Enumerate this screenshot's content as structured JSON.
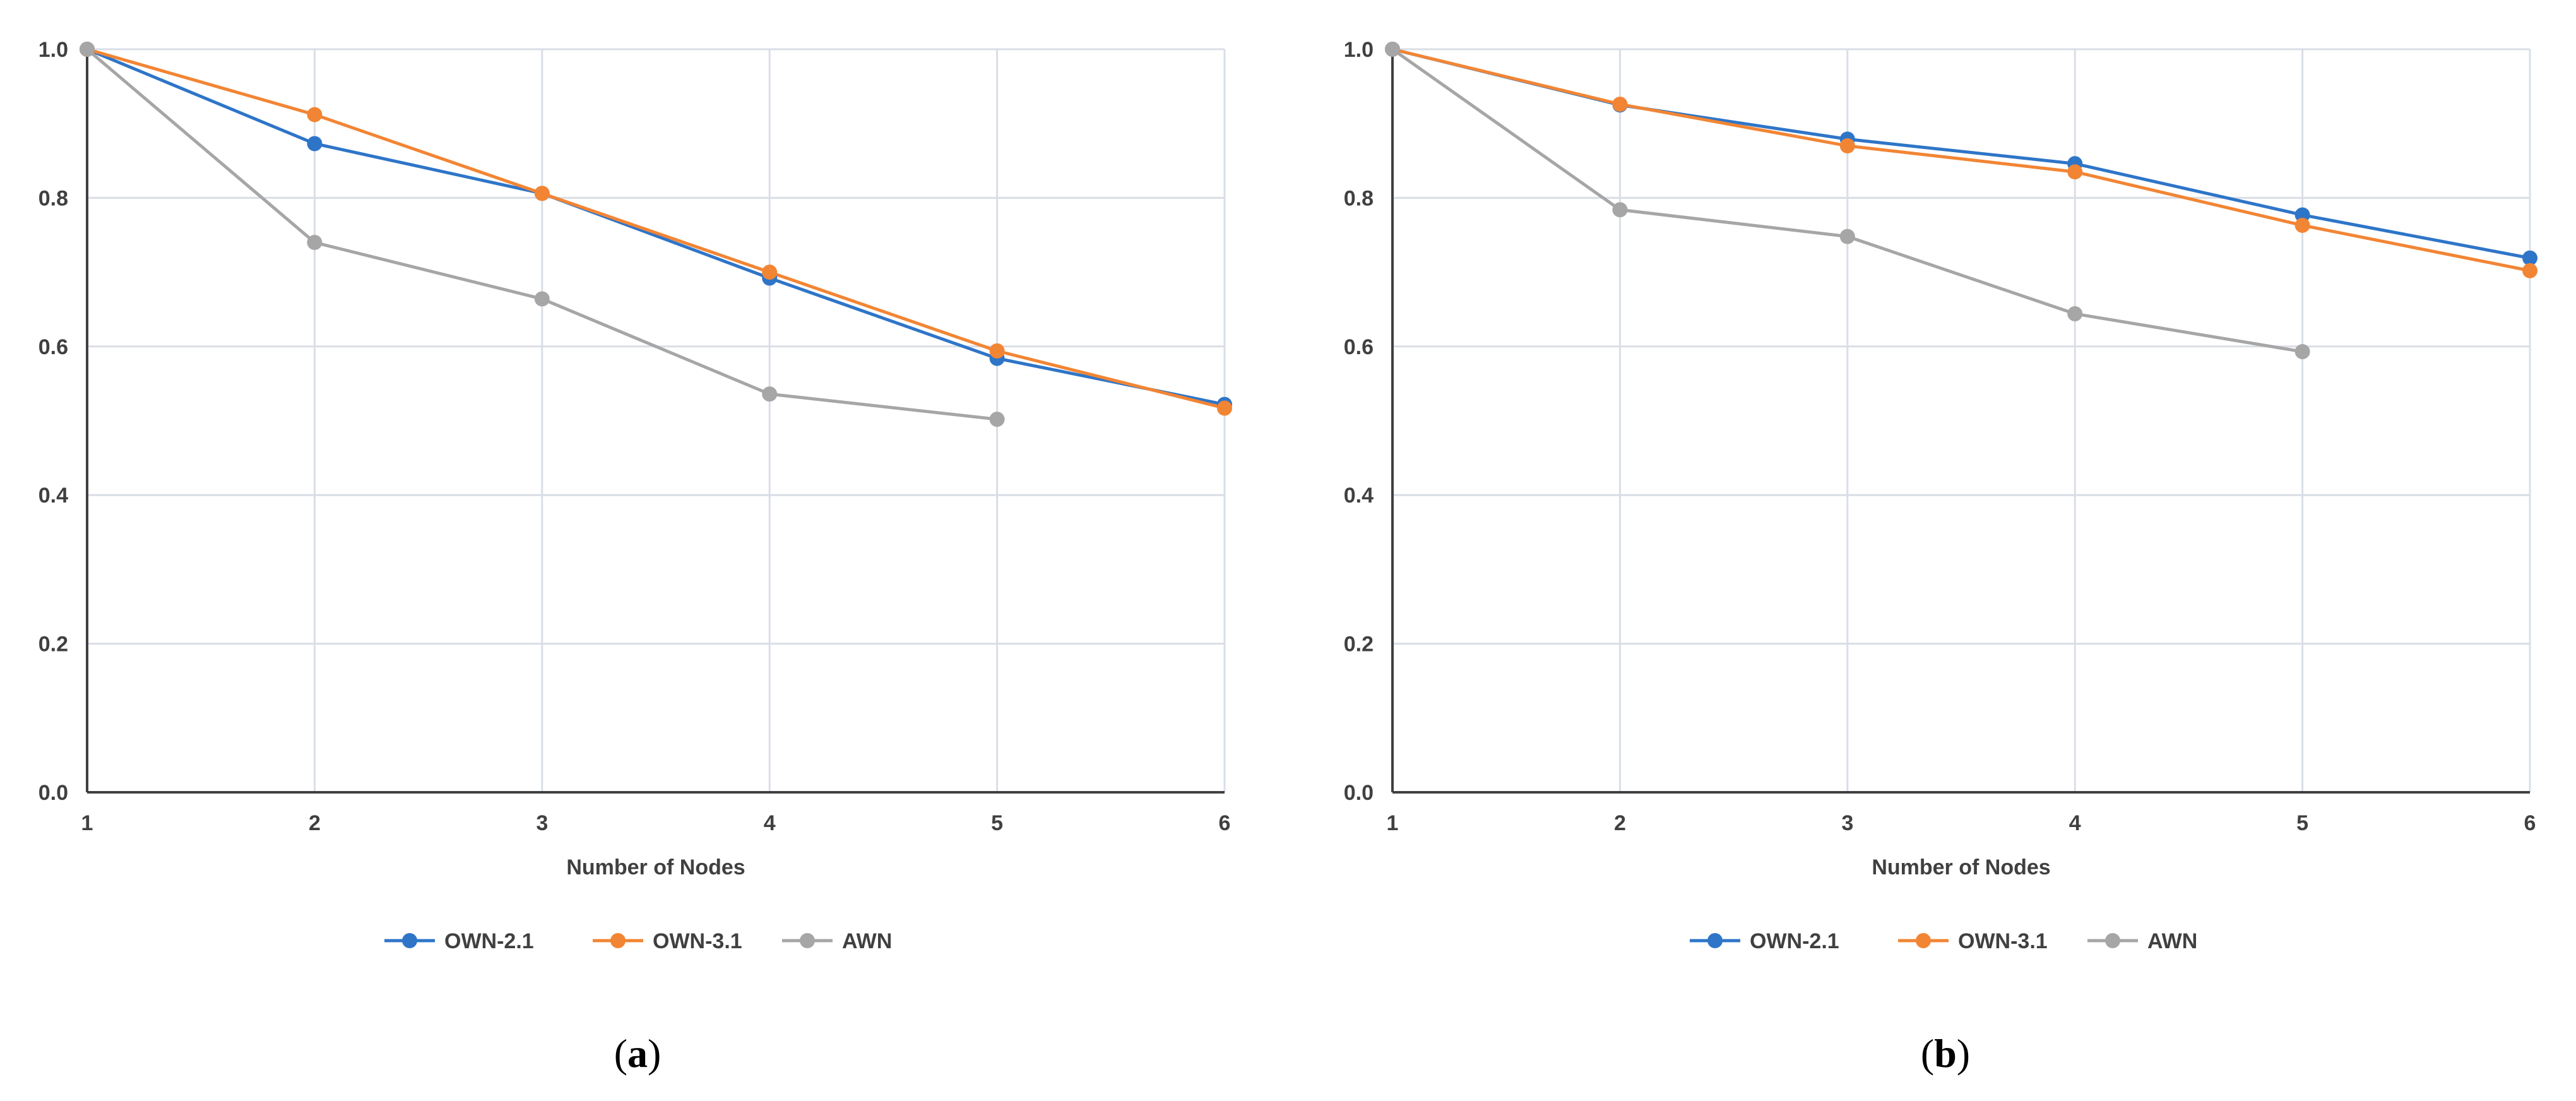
{
  "chart_data": [
    {
      "type": "line",
      "panel_label": "a",
      "x": [
        1,
        2,
        3,
        4,
        5,
        6
      ],
      "xlabel": "Number of Nodes",
      "ylabel": "",
      "title": "",
      "ylim": [
        0,
        1.0
      ],
      "xlim": [
        1,
        6
      ],
      "y_ticks": [
        "0.0",
        "0.2",
        "0.4",
        "0.6",
        "0.8",
        "1.0"
      ],
      "x_ticks": [
        "1",
        "2",
        "3",
        "4",
        "5",
        "6"
      ],
      "grid": true,
      "legend_position": "bottom",
      "series": [
        {
          "name": "OWN-2.1",
          "color": "#2e75c8",
          "values": [
            1.0,
            0.873,
            0.806,
            0.692,
            0.584,
            0.522
          ]
        },
        {
          "name": "OWN-3.1",
          "color": "#f28534",
          "values": [
            1.0,
            0.912,
            0.806,
            0.7,
            0.594,
            0.517
          ]
        },
        {
          "name": "AWN",
          "color": "#a6a6a6",
          "values": [
            1.0,
            0.74,
            0.664,
            0.536,
            0.502,
            null
          ]
        }
      ]
    },
    {
      "type": "line",
      "panel_label": "b",
      "x": [
        1,
        2,
        3,
        4,
        5,
        6
      ],
      "xlabel": "Number of Nodes",
      "ylabel": "",
      "title": "",
      "ylim": [
        0,
        1.0
      ],
      "xlim": [
        1,
        6
      ],
      "y_ticks": [
        "0.0",
        "0.2",
        "0.4",
        "0.6",
        "0.8",
        "1.0"
      ],
      "x_ticks": [
        "1",
        "2",
        "3",
        "4",
        "5",
        "6"
      ],
      "grid": true,
      "legend_position": "bottom",
      "series": [
        {
          "name": "OWN-2.1",
          "color": "#2e75c8",
          "values": [
            1.0,
            0.925,
            0.879,
            0.846,
            0.777,
            0.719
          ]
        },
        {
          "name": "OWN-3.1",
          "color": "#f28534",
          "values": [
            1.0,
            0.926,
            0.87,
            0.835,
            0.763,
            0.702
          ]
        },
        {
          "name": "AWN",
          "color": "#a6a6a6",
          "values": [
            1.0,
            0.784,
            0.748,
            0.644,
            0.593,
            null
          ]
        }
      ]
    }
  ],
  "captions": [
    {
      "open": "(",
      "letter": "a",
      "close": ")"
    },
    {
      "open": "(",
      "letter": "b",
      "close": ")"
    }
  ]
}
